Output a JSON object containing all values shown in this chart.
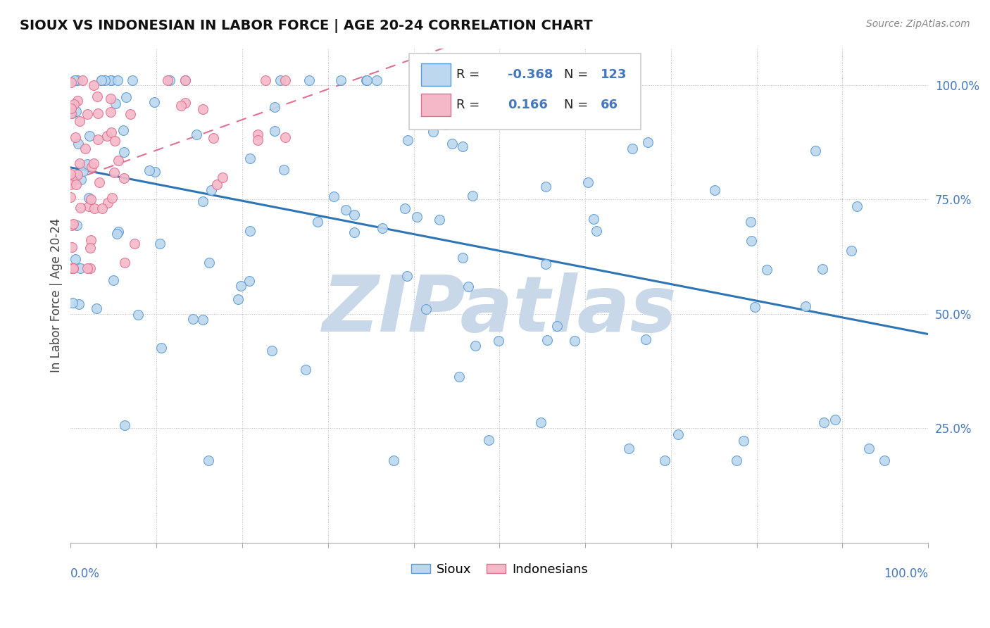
{
  "title": "SIOUX VS INDONESIAN IN LABOR FORCE | AGE 20-24 CORRELATION CHART",
  "source_text": "Source: ZipAtlas.com",
  "ylabel": "In Labor Force | Age 20-24",
  "ytick_labels": [
    "25.0%",
    "50.0%",
    "75.0%",
    "100.0%"
  ],
  "ytick_values": [
    0.25,
    0.5,
    0.75,
    1.0
  ],
  "sioux_color": "#bdd7ee",
  "sioux_edge": "#5b9bd5",
  "indonesian_color": "#f4b8c8",
  "indonesian_edge": "#e07090",
  "sioux_line_color": "#2e75b6",
  "indonesian_line_color": "#e07090",
  "background_color": "#ffffff",
  "watermark_text": "ZIPatlas",
  "watermark_color": "#c8d8e8",
  "grid_color": "#bbbbbb",
  "title_color": "#111111",
  "axis_label_color": "#444444",
  "tick_label_color": "#4477bb",
  "R_sioux": -0.368,
  "N_sioux": 123,
  "R_indonesian": 0.166,
  "N_indonesian": 66,
  "xlim": [
    0.0,
    1.0
  ],
  "ylim": [
    0.0,
    1.08
  ]
}
